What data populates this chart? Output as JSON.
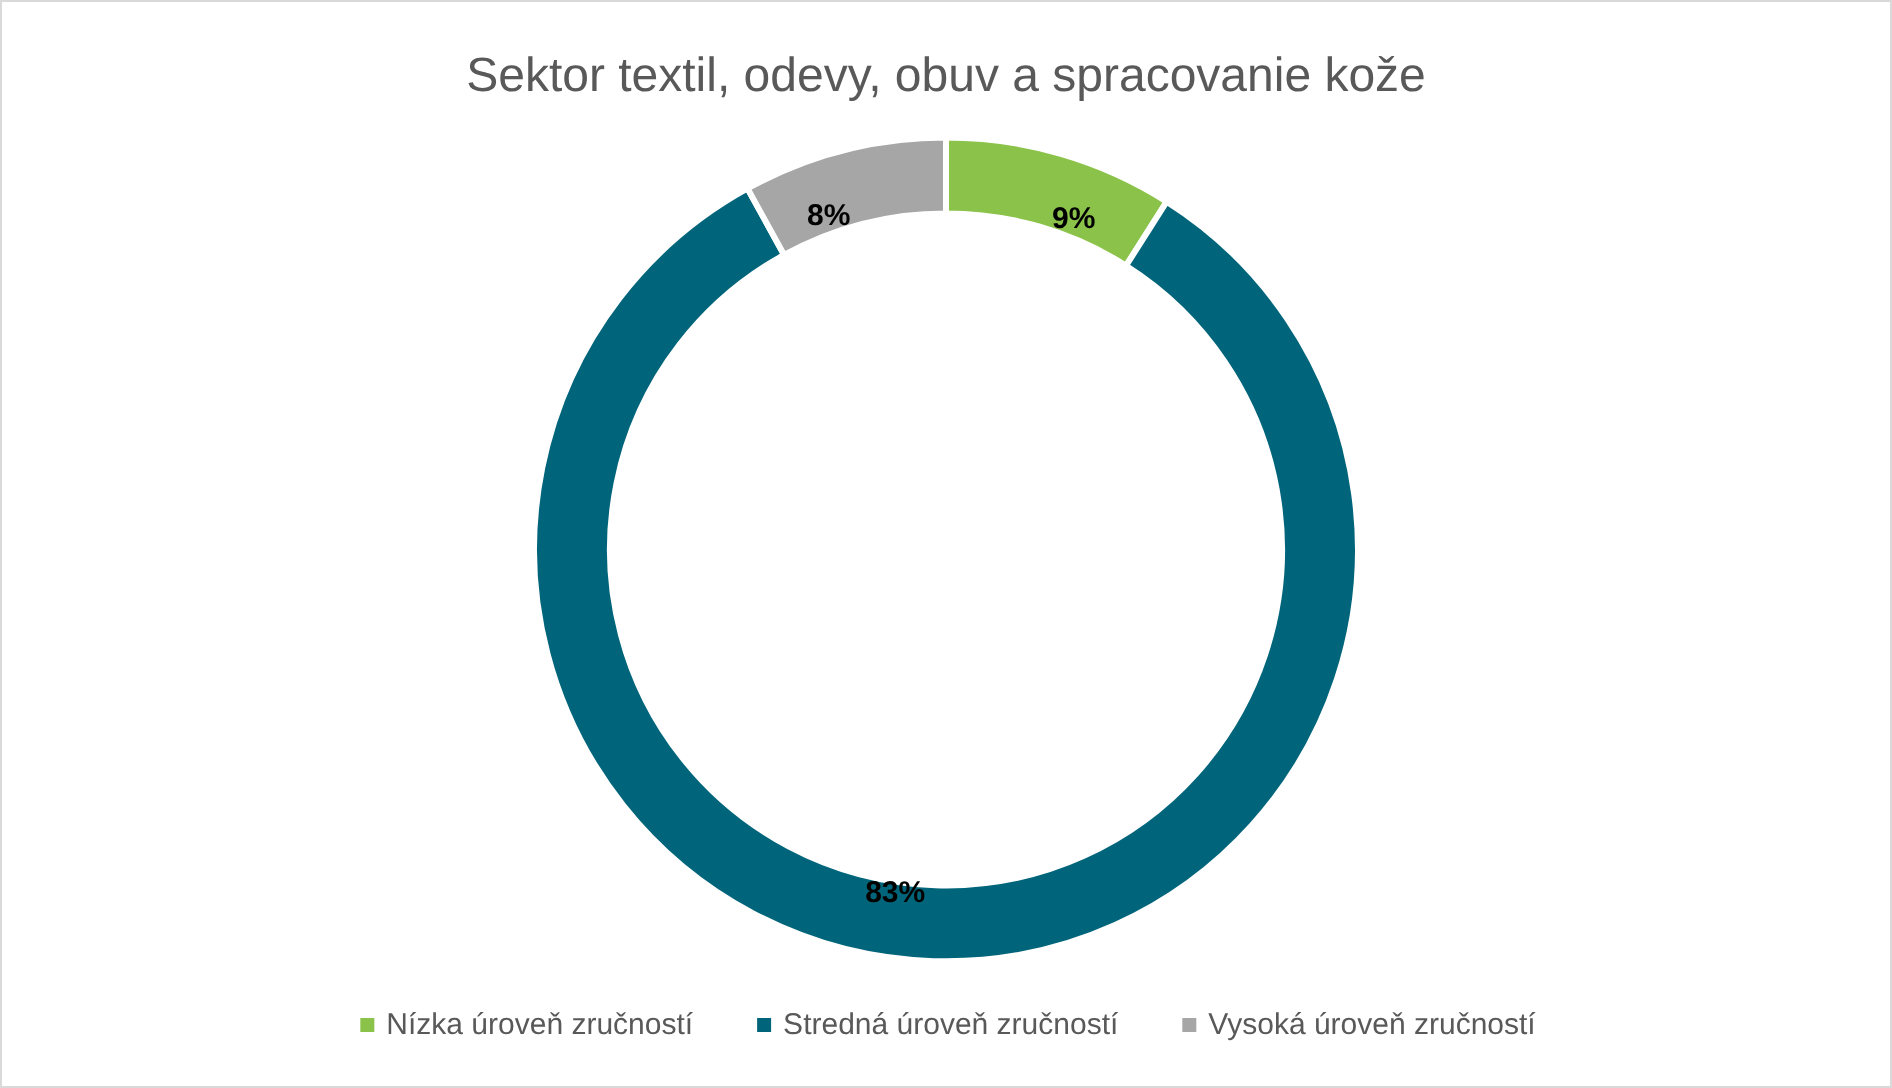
{
  "chart_data": {
    "type": "donut",
    "title": "Sektor textil, odevy, obuv a spracovanie kože",
    "categories": [
      "Nízka úroveň zručností",
      "Stredná úroveň zručností",
      "Vysoká úroveň zručností"
    ],
    "values": [
      9,
      83,
      8
    ],
    "colors": [
      "#8bc34a",
      "#00657a",
      "#a6a6a6"
    ],
    "value_labels": [
      "9%",
      "83%",
      "8%"
    ],
    "legend": "bottom"
  }
}
